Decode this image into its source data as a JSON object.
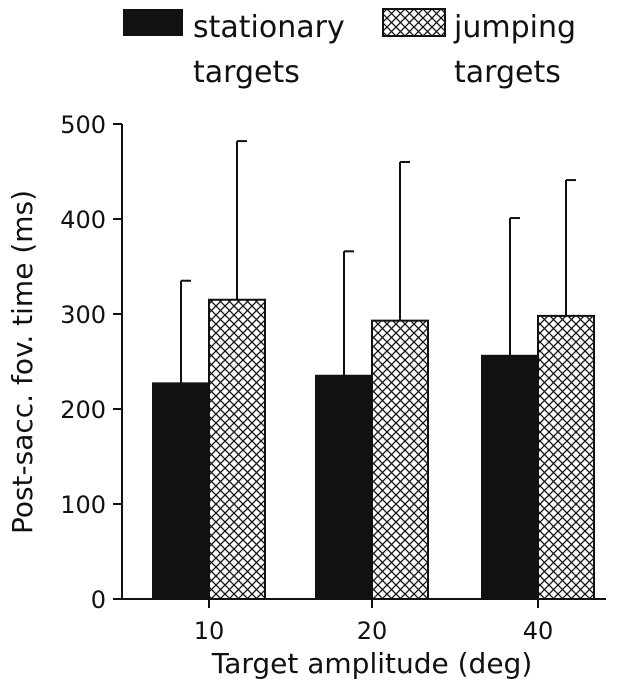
{
  "chart_data": {
    "type": "bar",
    "categories": [
      "10",
      "20",
      "40"
    ],
    "series": [
      {
        "name": "stationary targets",
        "legend_lines": [
          "stationary",
          "targets"
        ],
        "fill": "solid",
        "color": "#111111",
        "values": [
          227,
          235,
          256
        ],
        "error_upper": [
          335,
          366,
          401
        ]
      },
      {
        "name": "jumping targets",
        "legend_lines": [
          "jumping",
          "targets"
        ],
        "fill": "crosshatch",
        "color": "#111111",
        "values": [
          315,
          293,
          298
        ],
        "error_upper": [
          482,
          460,
          441
        ]
      }
    ],
    "xlabel": "Target amplitude (deg)",
    "ylabel": "Post-sacc. fov. time (ms)",
    "ylim": [
      0,
      500
    ],
    "yticks": [
      0,
      100,
      200,
      300,
      400,
      500
    ],
    "legend_position": "top",
    "grid": false
  }
}
